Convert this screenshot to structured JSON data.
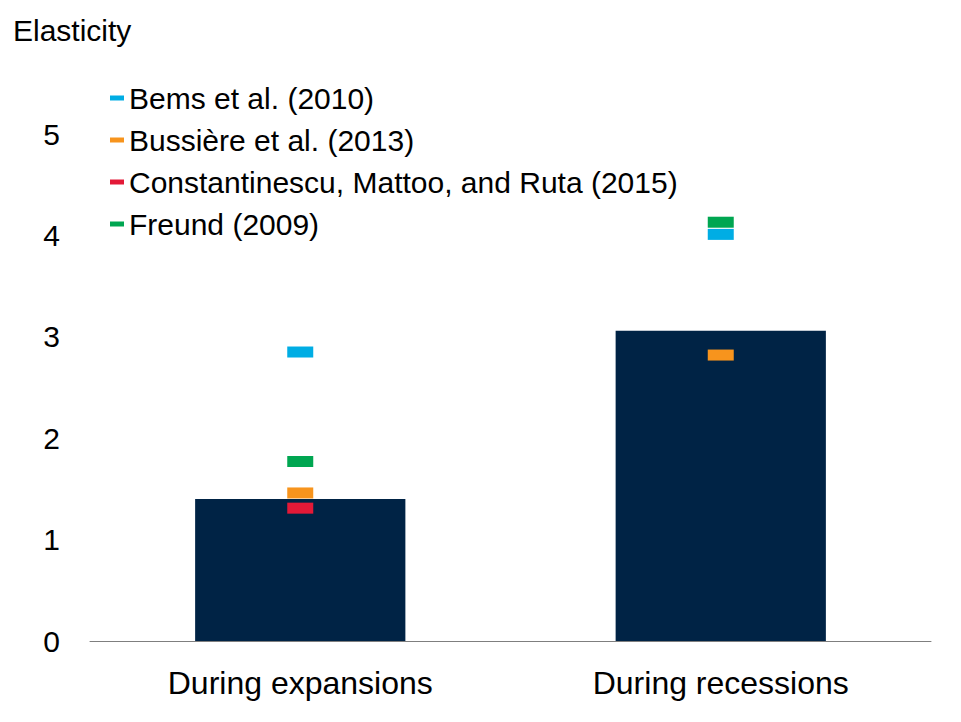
{
  "chart_data": {
    "type": "bar",
    "ylabel": "Elasticity",
    "categories": [
      "During expansions",
      "During recessions"
    ],
    "ylim": [
      0,
      5
    ],
    "yticks": [
      0,
      1,
      2,
      3,
      4,
      5
    ],
    "grid": false,
    "legend": "top-left",
    "series": [
      {
        "type": "bar",
        "color": "#002345",
        "values": [
          1.4,
          3.06
        ]
      },
      {
        "name": "Bems et al. (2010)",
        "type": "scatter",
        "marker": "dash",
        "color": "#00ADE4",
        "values": [
          2.85,
          4.01
        ]
      },
      {
        "name": "Bussière et al. (2013)",
        "type": "scatter",
        "marker": "dash",
        "color": "#F7941D",
        "values": [
          1.46,
          2.82
        ]
      },
      {
        "name": "Constantinescu, Mattoo, and Ruta (2015)",
        "type": "scatter",
        "marker": "dash",
        "color": "#E31937",
        "values": [
          1.31,
          null
        ]
      },
      {
        "name": "Freund (2009)",
        "type": "scatter",
        "marker": "dash",
        "color": "#00A651",
        "values": [
          1.77,
          4.13
        ]
      }
    ]
  }
}
